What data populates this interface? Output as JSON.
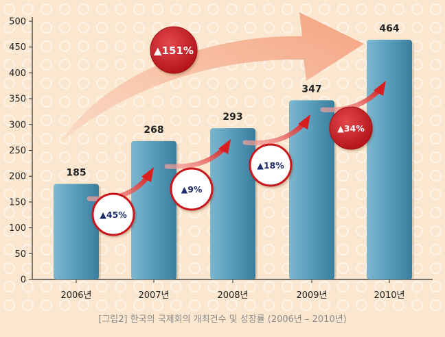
{
  "caption": "[그림2] 한국의 국제회의 개최건수 및 성장률 (2006년 – 2010년)",
  "colors": {
    "background": "#fbe7cf",
    "bar": "#5ea1bd",
    "growth_badge_white": "#ffffff",
    "growth_badge_red": "#c8161d",
    "arrow_red": "#d81e1e",
    "big_arrow": "#f6b08f"
  },
  "chart_data": {
    "type": "bar",
    "categories": [
      "2006년",
      "2007년",
      "2008년",
      "2009년",
      "2010년"
    ],
    "values": [
      185,
      268,
      293,
      347,
      464
    ],
    "value_labels": [
      "185",
      "268",
      "293",
      "347",
      "464"
    ],
    "ylim": [
      0,
      500
    ],
    "yticks": [
      0,
      50,
      100,
      150,
      200,
      250,
      300,
      350,
      400,
      450,
      500
    ],
    "grid": false,
    "growth_annotations": [
      {
        "text": "▲45%",
        "style": "white"
      },
      {
        "text": "▲9%",
        "style": "white"
      },
      {
        "text": "▲18%",
        "style": "white"
      },
      {
        "text": "▲34%",
        "style": "red"
      }
    ],
    "overall_growth": {
      "text": "▲151%",
      "style": "red"
    }
  }
}
